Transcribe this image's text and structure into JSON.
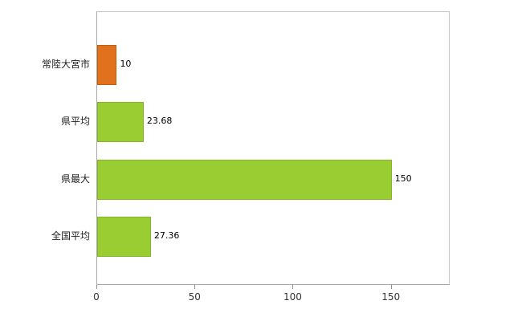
{
  "chart_data": {
    "type": "bar",
    "orientation": "horizontal",
    "title": "",
    "xlabel": "",
    "ylabel": "",
    "categories": [
      "常陸大宮市",
      "県平均",
      "県最大",
      "全国平均"
    ],
    "values": [
      10,
      23.68,
      150,
      27.36
    ],
    "value_labels": [
      "10",
      "23.68",
      "150",
      "27.36"
    ],
    "bar_colors": [
      "#e2711d",
      "#9acd32",
      "#9acd32",
      "#9acd32"
    ],
    "bar_border_colors": [
      "#c05e10",
      "#85b428",
      "#85b428",
      "#85b428"
    ],
    "x_tick_labels": [
      "0",
      "50",
      "100",
      "150"
    ],
    "x_tick_values": [
      0,
      50,
      100,
      150
    ],
    "xlim": [
      0,
      180
    ],
    "grid": false,
    "legend": false
  },
  "colors": {
    "background": "#ffffff",
    "frame": "#c9c9c9",
    "axis": "#a8a8a8",
    "tick": "#8e8e8e",
    "category_text": "#222222",
    "value_text": "#000000"
  }
}
